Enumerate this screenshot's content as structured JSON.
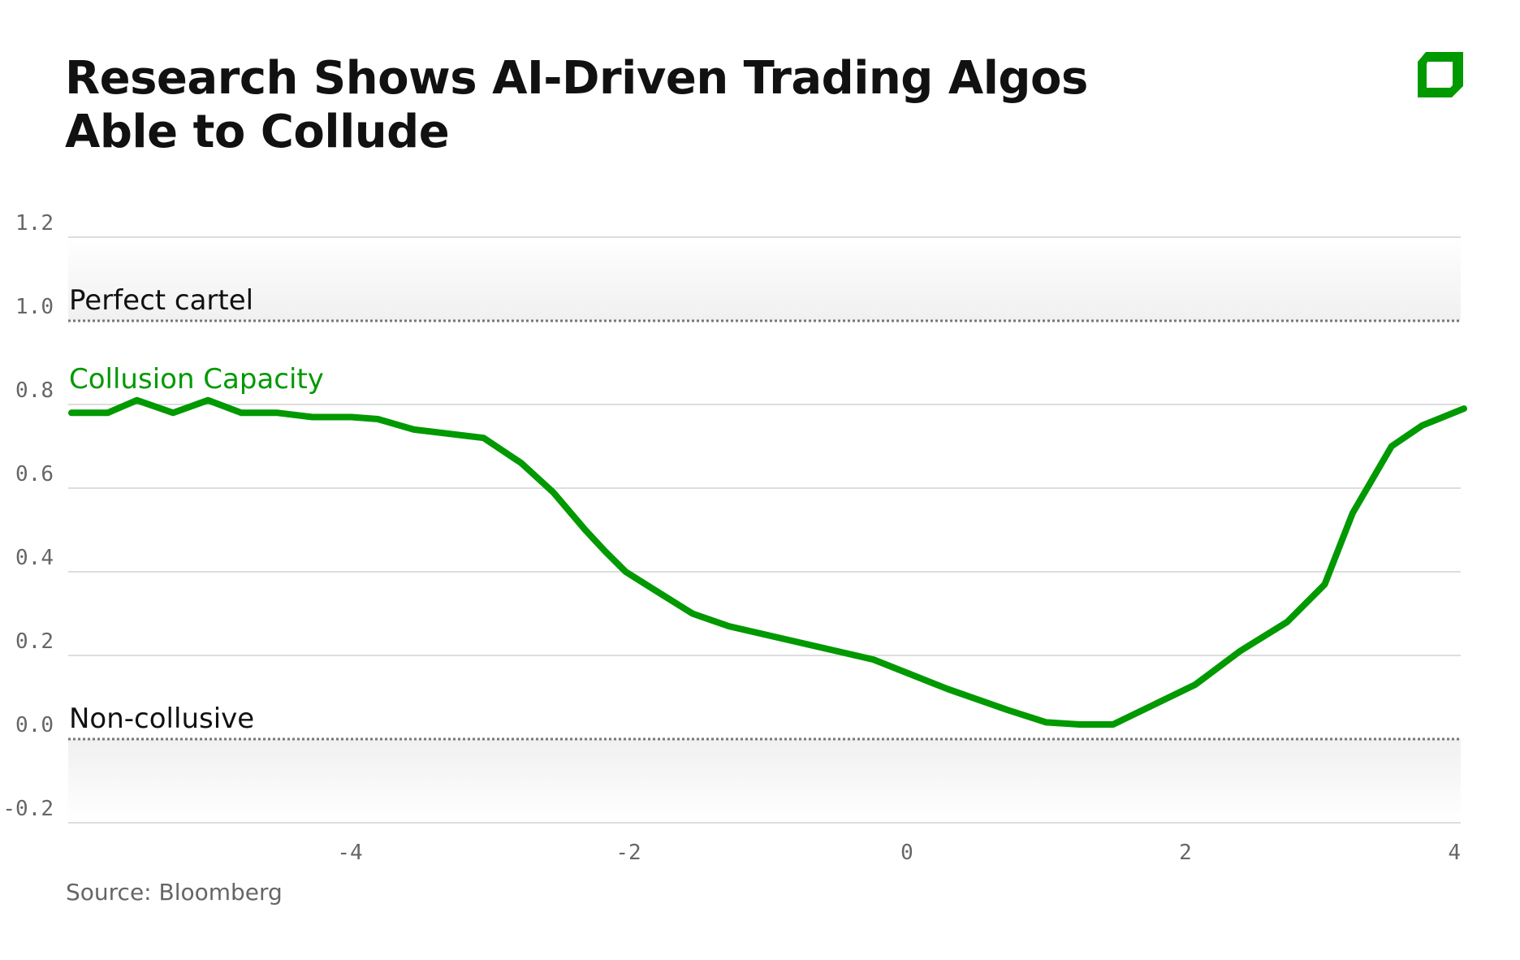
{
  "header": {
    "title_line1": "Research Shows AI-Driven Trading Algos",
    "title_line2": "Able to Collude",
    "logo_icon": "bloomberg-green-square-logo",
    "brand_color": "#009900"
  },
  "footer": {
    "source": "Source: Bloomberg"
  },
  "colors": {
    "series": "#009900",
    "grid": "#dddddd",
    "reference_line": "#777777",
    "axis_text": "#666666",
    "band": "#f1f1f1"
  },
  "chart_data": {
    "type": "line",
    "title": "Research Shows AI-Driven Trading Algos Able to Collude",
    "xlabel": "",
    "ylabel": "",
    "xlim": [
      -6,
      4
    ],
    "ylim": [
      -0.2,
      1.2
    ],
    "grid": true,
    "x_ticks": [
      "-4",
      "-2",
      "0",
      "2",
      "4"
    ],
    "y_ticks": [
      "1.2",
      "1.0",
      "0.8",
      "0.6",
      "0.4",
      "0.2",
      "0.0",
      "-0.2"
    ],
    "annotations": [
      {
        "text": "Perfect cartel",
        "y": 1.0,
        "style": "dotted reference line"
      },
      {
        "text": "Non-collusive",
        "y": 0.0,
        "style": "dotted reference line"
      }
    ],
    "series": [
      {
        "name": "Collusion Capacity",
        "color": "#009900",
        "x": [
          -6.0,
          -5.74,
          -5.53,
          -5.27,
          -5.02,
          -4.78,
          -4.52,
          -4.27,
          -3.99,
          -3.8,
          -3.54,
          -3.04,
          -2.77,
          -2.54,
          -2.31,
          -2.17,
          -2.02,
          -1.78,
          -1.54,
          -1.28,
          -0.24,
          0.29,
          0.72,
          1.0,
          1.24,
          1.48,
          2.07,
          2.39,
          2.73,
          3.0,
          3.2,
          3.48,
          3.7,
          4.0
        ],
        "values": [
          0.78,
          0.78,
          0.81,
          0.78,
          0.81,
          0.78,
          0.78,
          0.77,
          0.77,
          0.765,
          0.74,
          0.72,
          0.66,
          0.59,
          0.5,
          0.45,
          0.4,
          0.35,
          0.3,
          0.27,
          0.19,
          0.12,
          0.07,
          0.04,
          0.035,
          0.035,
          0.13,
          0.21,
          0.28,
          0.37,
          0.54,
          0.7,
          0.75,
          0.79
        ]
      }
    ],
    "source": "Bloomberg"
  }
}
